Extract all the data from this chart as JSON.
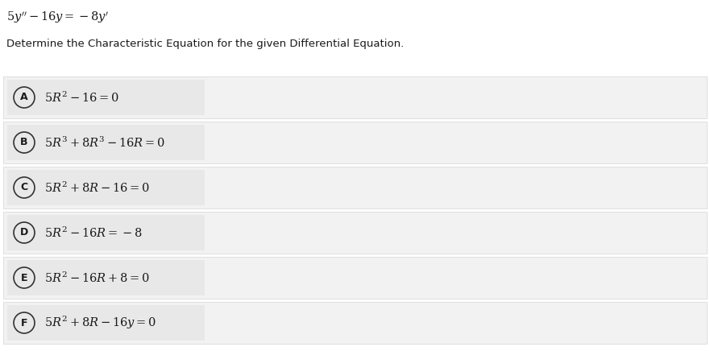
{
  "title_eq": "$5y'' - 16y = -8y'$",
  "subtitle": "Determine the Characteristic Equation for the given Differential Equation.",
  "options": [
    {
      "label": "A",
      "eq": "$5R^2 - 16 = 0$"
    },
    {
      "label": "B",
      "eq": "$5R^3 + 8R^3 - 16R = 0$"
    },
    {
      "label": "C",
      "eq": "$5R^2 + 8R - 16 = 0$"
    },
    {
      "label": "D",
      "eq": "$5R^2 - 16R = -8$"
    },
    {
      "label": "E",
      "eq": "$5R^2 - 16R + 8 = 0$"
    },
    {
      "label": "F",
      "eq": "$5R^2 + 8R - 16y = 0$"
    }
  ],
  "bg_color": "#ffffff",
  "row_bg_color": "#f2f2f2",
  "box_bg_color": "#e8e8e8",
  "row_border_color": "#cccccc",
  "text_color": "#1a1a1a",
  "circle_color": "#333333",
  "title_fontsize": 10.5,
  "subtitle_fontsize": 9.5,
  "option_fontsize": 10.5,
  "label_fontsize": 9
}
